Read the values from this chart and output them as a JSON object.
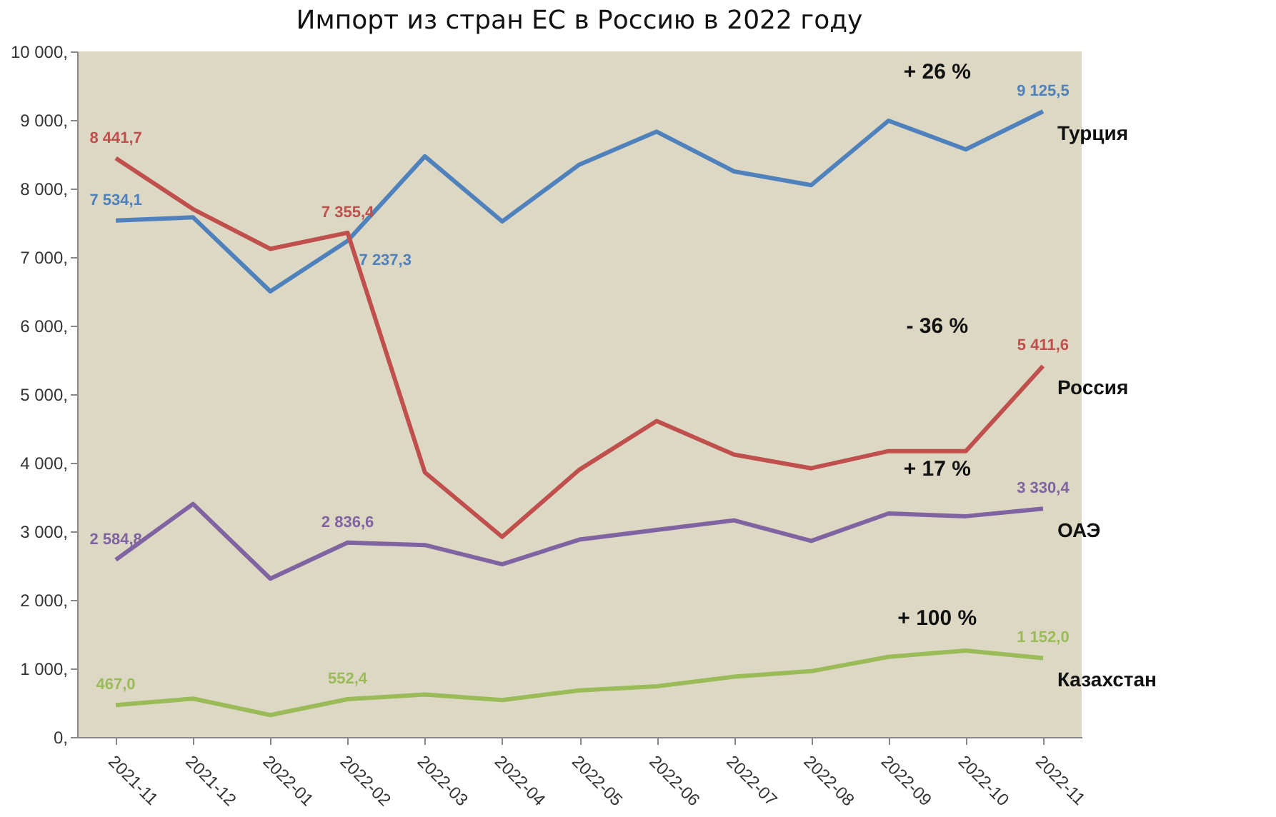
{
  "chart_data": {
    "type": "line",
    "title": "Импорт из стран ЕС в Россию в 2022 году",
    "categories": [
      "2021-11",
      "2021-12",
      "2022-01",
      "2022-02",
      "2022-03",
      "2022-04",
      "2022-05",
      "2022-06",
      "2022-07",
      "2022-08",
      "2022-09",
      "2022-10",
      "2022-11"
    ],
    "series": [
      {
        "name": "Турция",
        "color": "#4f81bd",
        "values": [
          7534.1,
          7580,
          6500,
          7237.3,
          8470,
          7520,
          8350,
          8830,
          8250,
          8050,
          8990,
          8570,
          9125.5
        ],
        "value_labels": [
          "7 534,1",
          null,
          null,
          "7 237,3",
          null,
          null,
          null,
          null,
          null,
          null,
          null,
          null,
          "9 125,5"
        ]
      },
      {
        "name": "Россия",
        "color": "#c0504d",
        "values": [
          8441.7,
          7700,
          7120,
          7355.4,
          3860,
          2920,
          3900,
          4610,
          4120,
          3920,
          4170,
          4170,
          5411.6
        ],
        "value_labels": [
          "8 441,7",
          null,
          null,
          "7 355,4",
          null,
          null,
          null,
          null,
          null,
          null,
          null,
          null,
          "5 411,6"
        ]
      },
      {
        "name": "ОАЭ",
        "color": "#8064a2",
        "values": [
          2584.8,
          3400,
          2310,
          2836.6,
          2800,
          2520,
          2880,
          3020,
          3160,
          2860,
          3260,
          3220,
          3330.4
        ],
        "value_labels": [
          "2 584,8",
          null,
          null,
          "2 836,6",
          null,
          null,
          null,
          null,
          null,
          null,
          null,
          null,
          "3 330,4"
        ]
      },
      {
        "name": "Казахстан",
        "color": "#9bbb59",
        "values": [
          467.0,
          560,
          320,
          552.4,
          620,
          540,
          680,
          740,
          880,
          960,
          1170,
          1260,
          1152.0
        ],
        "value_labels": [
          "467,0",
          null,
          null,
          "552,4",
          null,
          null,
          null,
          null,
          null,
          null,
          null,
          null,
          "1 152,0"
        ]
      }
    ],
    "ylim": [
      0,
      10000
    ],
    "yticks": [
      {
        "value": 0,
        "label": "0,"
      },
      {
        "value": 1000,
        "label": "1 000,"
      },
      {
        "value": 2000,
        "label": "2 000,"
      },
      {
        "value": 3000,
        "label": "3 000,"
      },
      {
        "value": 4000,
        "label": "4 000,"
      },
      {
        "value": 5000,
        "label": "5 000,"
      },
      {
        "value": 6000,
        "label": "6 000,"
      },
      {
        "value": 7000,
        "label": "7 000,"
      },
      {
        "value": 8000,
        "label": "8 000,"
      },
      {
        "value": 9000,
        "label": "9 000,"
      },
      {
        "value": 10000,
        "label": "10 000,"
      }
    ],
    "annotations": [
      "+ 26 %",
      "- 36 %",
      "+ 17 %",
      "+ 100 %"
    ],
    "grid": false,
    "legend": false,
    "marker": "none",
    "line_style": "solid"
  }
}
